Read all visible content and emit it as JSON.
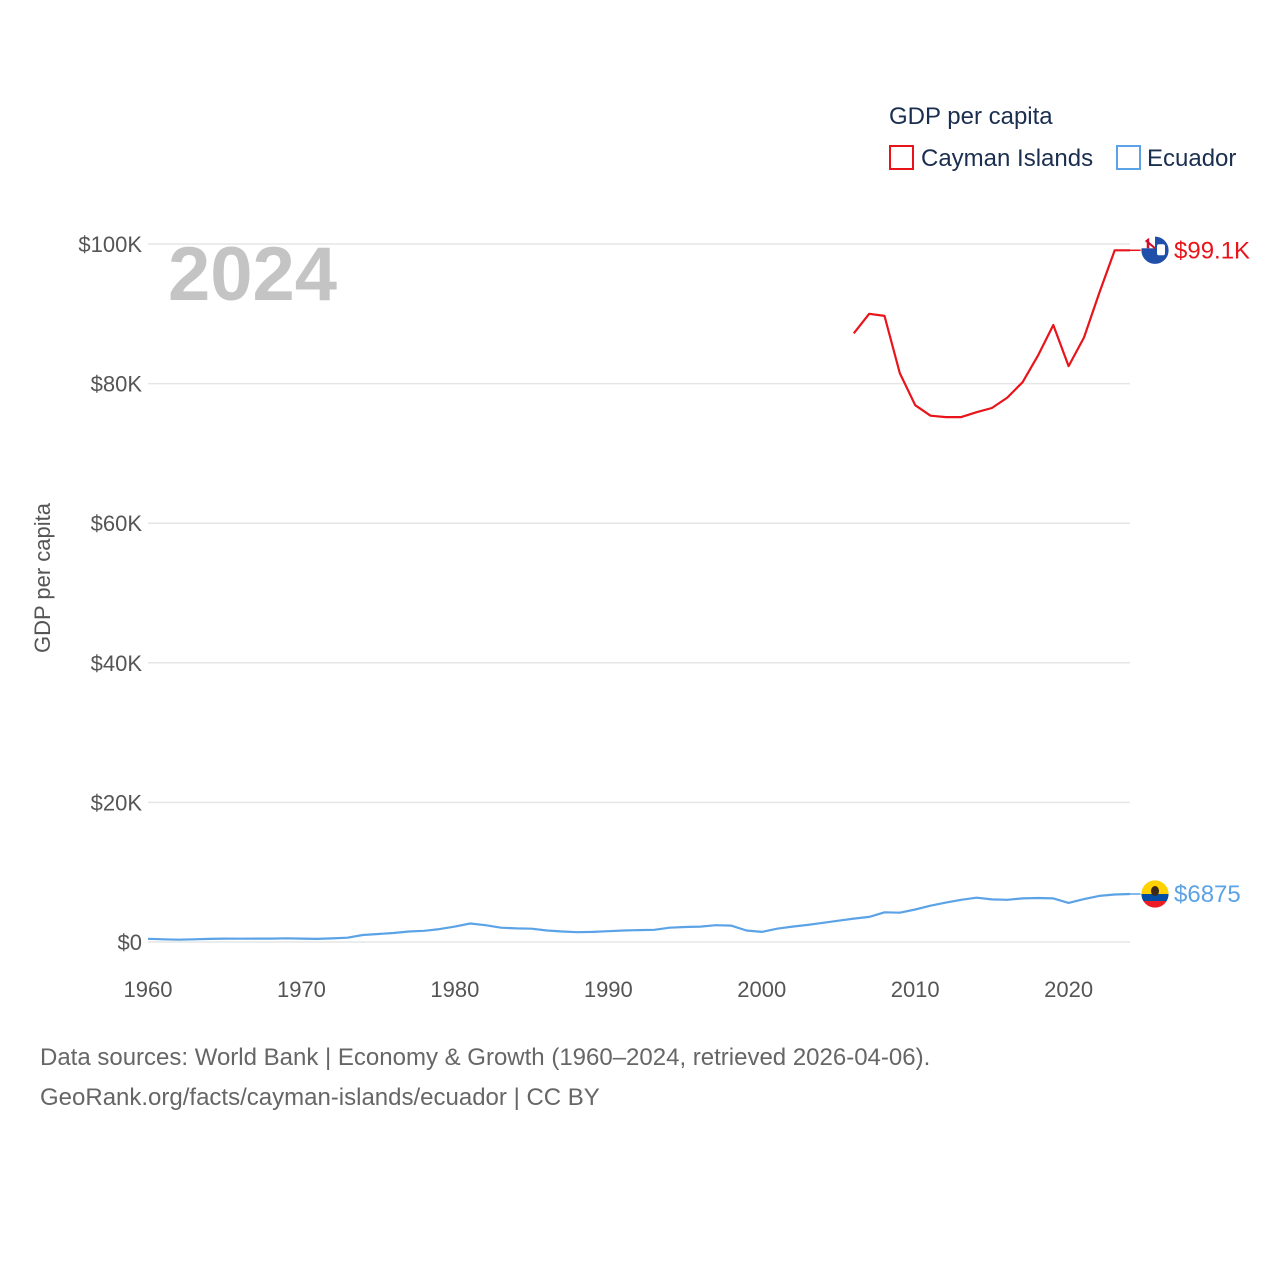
{
  "chart_data": {
    "type": "line",
    "title": "GDP per capita",
    "ylabel": "GDP per capita",
    "xlabel": "",
    "year_label": "2024",
    "x_ticks": [
      1960,
      1970,
      1980,
      1990,
      2000,
      2010,
      2020
    ],
    "x_tick_labels": [
      "1960",
      "1970",
      "1980",
      "1990",
      "2000",
      "2010",
      "2020"
    ],
    "y_ticks": [
      0,
      20000,
      40000,
      60000,
      80000,
      100000
    ],
    "y_tick_labels": [
      "$0",
      "$20K",
      "$40K",
      "$60K",
      "$80K",
      "$100K"
    ],
    "xlim": [
      1960,
      2024
    ],
    "ylim": [
      0,
      100000
    ],
    "legend": {
      "title": "GDP per capita",
      "position": "top-right"
    },
    "series": [
      {
        "name": "Cayman Islands",
        "color": "#e8141a",
        "end_label": "$99.1K",
        "flag": "cayman-islands-flag-icon",
        "x": [
          2006,
          2007,
          2008,
          2009,
          2010,
          2011,
          2012,
          2013,
          2014,
          2015,
          2016,
          2017,
          2018,
          2019,
          2020,
          2021,
          2022,
          2023,
          2024
        ],
        "values": [
          87200,
          90000,
          89700,
          81500,
          76900,
          75400,
          75200,
          75200,
          75900,
          76500,
          78000,
          80200,
          84000,
          88400,
          82500,
          86600,
          93000,
          99100,
          99100
        ]
      },
      {
        "name": "Ecuador",
        "color": "#5ba3e6",
        "end_label": "$6875",
        "flag": "ecuador-flag-icon",
        "x": [
          1960,
          1961,
          1962,
          1963,
          1964,
          1965,
          1966,
          1967,
          1968,
          1969,
          1970,
          1971,
          1972,
          1973,
          1974,
          1975,
          1976,
          1977,
          1978,
          1979,
          1980,
          1981,
          1982,
          1983,
          1984,
          1985,
          1986,
          1987,
          1988,
          1989,
          1990,
          1991,
          1992,
          1993,
          1994,
          1995,
          1996,
          1997,
          1998,
          1999,
          2000,
          2001,
          2002,
          2003,
          2004,
          2005,
          2006,
          2007,
          2008,
          2009,
          2010,
          2011,
          2012,
          2013,
          2014,
          2015,
          2016,
          2017,
          2018,
          2019,
          2020,
          2021,
          2022,
          2023,
          2024
        ],
        "values": [
          460,
          380,
          330,
          380,
          450,
          480,
          470,
          490,
          480,
          530,
          490,
          440,
          510,
          620,
          1000,
          1150,
          1290,
          1500,
          1600,
          1850,
          2200,
          2650,
          2400,
          2050,
          1950,
          1900,
          1650,
          1500,
          1400,
          1450,
          1550,
          1650,
          1700,
          1750,
          2050,
          2150,
          2200,
          2400,
          2350,
          1650,
          1450,
          1900,
          2200,
          2450,
          2750,
          3050,
          3350,
          3600,
          4250,
          4200,
          4650,
          5200,
          5650,
          6050,
          6350,
          6100,
          6050,
          6250,
          6300,
          6250,
          5600,
          6150,
          6600,
          6800,
          6875
        ]
      }
    ]
  },
  "footer": {
    "line1": "Data sources: World Bank | Economy & Growth (1960–2024, retrieved 2026-04-06).",
    "line2": "GeoRank.org/facts/cayman-islands/ecuador | CC BY"
  }
}
